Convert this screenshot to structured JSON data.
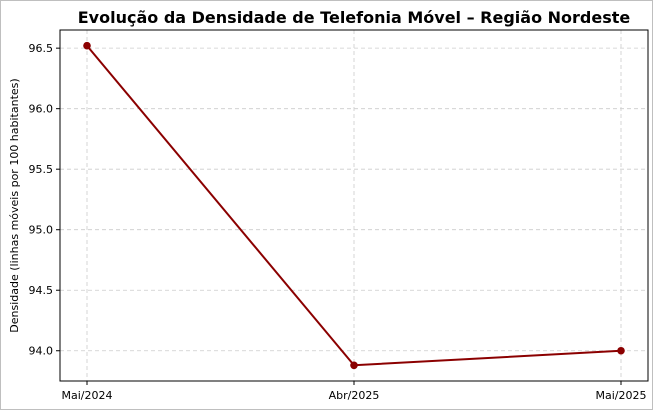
{
  "chart_data": {
    "type": "line",
    "title": "Evolução da Densidade de Telefonia Móvel – Região Nordeste",
    "xlabel": "",
    "ylabel": "Densidade (linhas móveis por 100 habitantes)",
    "categories": [
      "Mai/2024",
      "Abr/2025",
      "Mai/2025"
    ],
    "series": [
      {
        "values": [
          96.52,
          93.88,
          94.0
        ]
      }
    ],
    "ylim": [
      93.75,
      96.65
    ],
    "yticks": [
      "94.0",
      "94.5",
      "95.0",
      "95.5",
      "96.0",
      "96.5"
    ],
    "grid": true,
    "line_color": "#8b0000",
    "marker": "circle"
  }
}
